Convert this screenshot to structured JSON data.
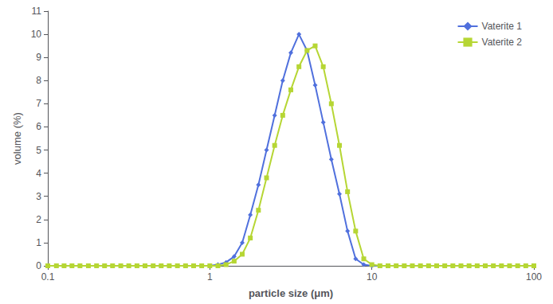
{
  "chart_data": {
    "type": "line",
    "xlabel": "particle size (μm)",
    "ylabel": "volume (%)",
    "log": "x",
    "xlim": [
      0.1,
      100
    ],
    "xticks": [
      0.1,
      1,
      10,
      100
    ],
    "ylim": [
      0,
      11
    ],
    "yticks": [
      0,
      1,
      2,
      3,
      4,
      5,
      6,
      7,
      8,
      9,
      10,
      11
    ],
    "grid": false,
    "legend": "upper right",
    "x": [
      0.1,
      0.113,
      0.126,
      0.141,
      0.158,
      0.178,
      0.2,
      0.224,
      0.251,
      0.282,
      0.316,
      0.355,
      0.398,
      0.447,
      0.501,
      0.562,
      0.631,
      0.708,
      0.794,
      0.891,
      1.0,
      1.122,
      1.259,
      1.413,
      1.585,
      1.778,
      1.995,
      2.239,
      2.512,
      2.818,
      3.162,
      3.548,
      3.981,
      4.467,
      5.012,
      5.623,
      6.31,
      7.079,
      7.943,
      8.913,
      10.0,
      11.22,
      12.59,
      14.13,
      15.85,
      17.78,
      19.95,
      22.39,
      25.12,
      28.18,
      31.62,
      35.48,
      39.81,
      44.67,
      50.12,
      56.23,
      63.1,
      70.79,
      79.43,
      89.13,
      100.0
    ],
    "series": [
      {
        "name": "Vaterite 1",
        "marker": "diamond",
        "values": [
          0,
          0,
          0,
          0,
          0,
          0,
          0,
          0,
          0,
          0,
          0,
          0,
          0,
          0,
          0,
          0,
          0,
          0,
          0,
          0,
          0,
          0.05,
          0.15,
          0.4,
          1.0,
          2.2,
          3.5,
          5.0,
          6.5,
          8.0,
          9.2,
          10.0,
          9.3,
          7.8,
          6.2,
          4.6,
          3.1,
          1.5,
          0.3,
          0.05,
          0,
          0,
          0,
          0,
          0,
          0,
          0,
          0,
          0,
          0,
          0,
          0,
          0,
          0,
          0,
          0,
          0,
          0,
          0,
          0,
          0
        ]
      },
      {
        "name": "Vaterite 2",
        "marker": "square",
        "values": [
          0,
          0,
          0,
          0,
          0,
          0,
          0,
          0,
          0,
          0,
          0,
          0,
          0,
          0,
          0,
          0,
          0,
          0,
          0,
          0,
          0,
          0,
          0.05,
          0.2,
          0.5,
          1.2,
          2.4,
          3.8,
          5.2,
          6.5,
          7.6,
          8.6,
          9.3,
          9.5,
          8.6,
          7.0,
          5.2,
          3.2,
          1.5,
          0.3,
          0.05,
          0,
          0,
          0,
          0,
          0,
          0,
          0,
          0,
          0,
          0,
          0,
          0,
          0,
          0,
          0,
          0,
          0,
          0,
          0,
          0
        ]
      }
    ]
  }
}
